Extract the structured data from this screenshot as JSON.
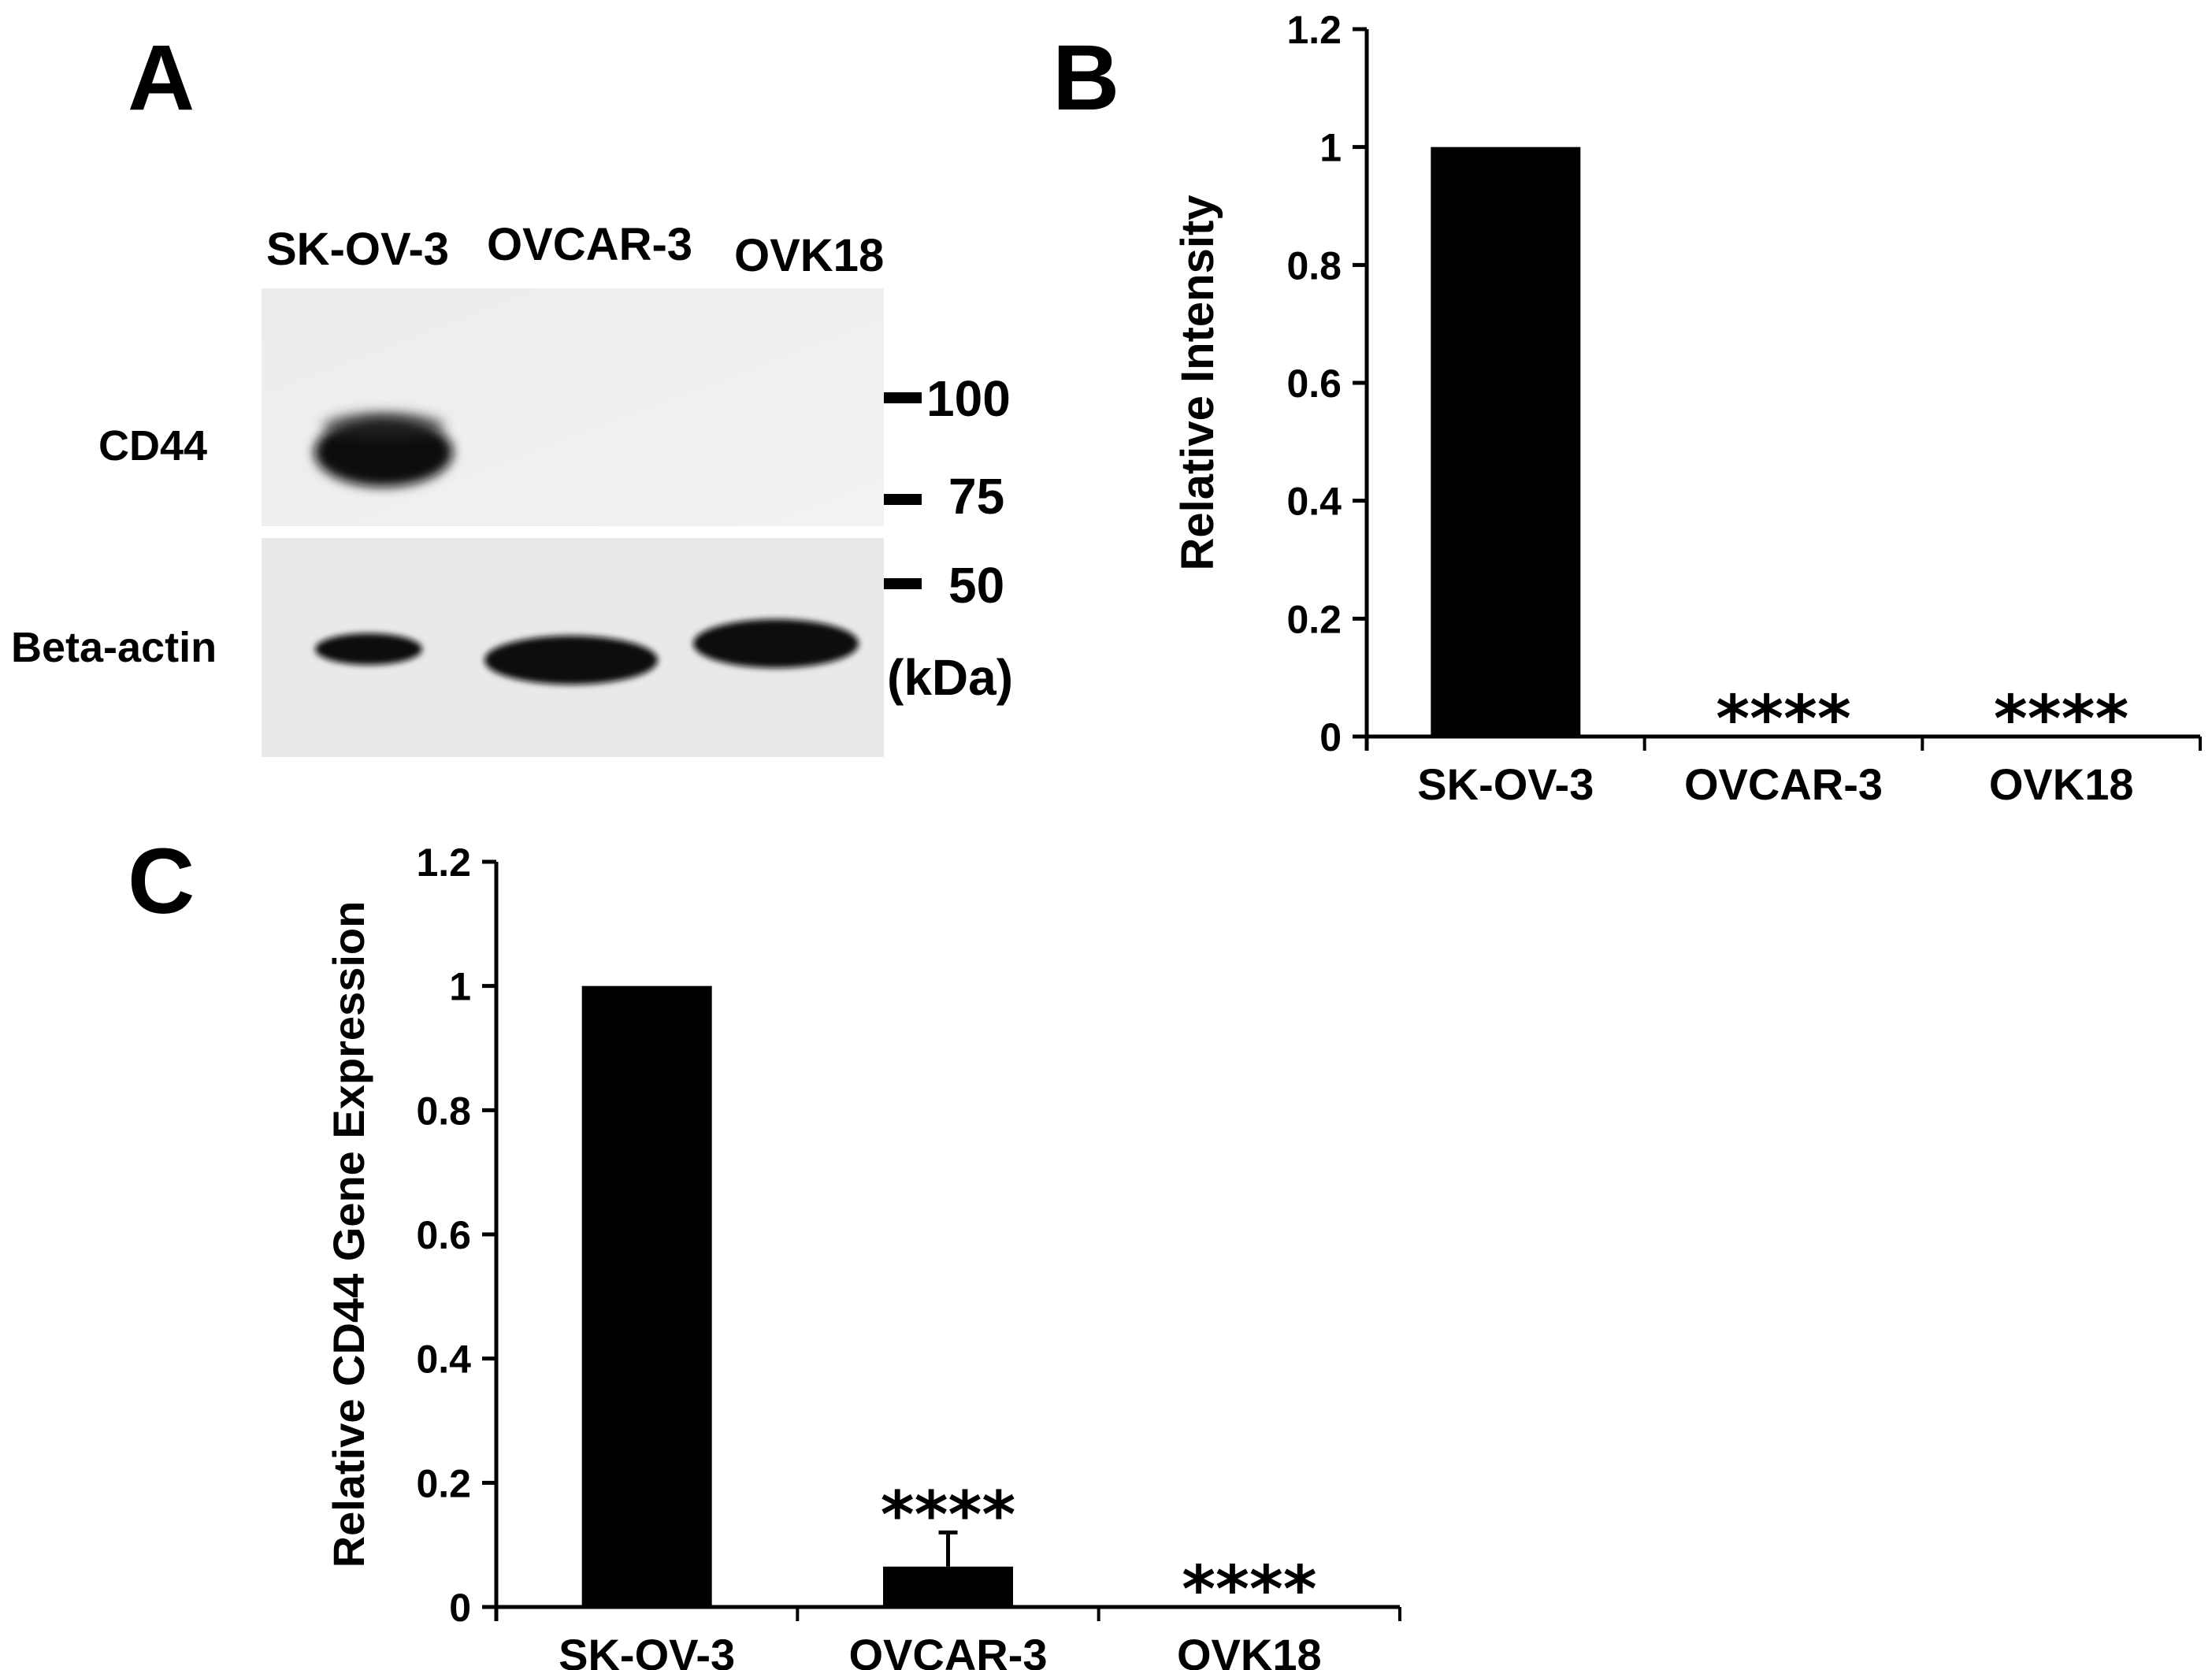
{
  "panels": {
    "a": "A",
    "b": "B",
    "c": "C"
  },
  "western_blot": {
    "lanes": [
      "SK-OV-3",
      "OVCAR-3",
      "OVK18"
    ],
    "rows": [
      "CD44",
      "Beta-actin"
    ],
    "markers": [
      "100",
      "75",
      "50"
    ],
    "unit": "(kDa)",
    "cd44_band_present": [
      1,
      0,
      0
    ],
    "beta_actin_band_present": [
      1,
      1,
      1
    ]
  },
  "chart_data": [
    {
      "type": "bar",
      "panel": "B",
      "categories": [
        "SK-OV-3",
        "OVCAR-3",
        "OVK18"
      ],
      "values": [
        1.0,
        0.0,
        0.0
      ],
      "errors": [
        0.003,
        0.0,
        0.0
      ],
      "annotations": [
        "",
        "****",
        "****"
      ],
      "ylabel": "Relative Intensity",
      "xlabel": "",
      "ylim": [
        0,
        1.2
      ],
      "yticks": [
        "0",
        "0.2",
        "0.4",
        "0.6",
        "0.8",
        "1",
        "1.2"
      ],
      "bar_color": "#000000"
    },
    {
      "type": "bar",
      "panel": "C",
      "categories": [
        "SK-OV-3",
        "OVCAR-3",
        "OVK18"
      ],
      "values": [
        1.0,
        0.065,
        0.0
      ],
      "errors": [
        0.003,
        0.055,
        0.0
      ],
      "annotations": [
        "",
        "****",
        "****"
      ],
      "ylabel": "Relative CD44 Gene Expression",
      "xlabel": "",
      "ylim": [
        0,
        1.2
      ],
      "yticks": [
        "0",
        "0.2",
        "0.4",
        "0.6",
        "0.8",
        "1",
        "1.2"
      ],
      "bar_color": "#000000"
    }
  ]
}
